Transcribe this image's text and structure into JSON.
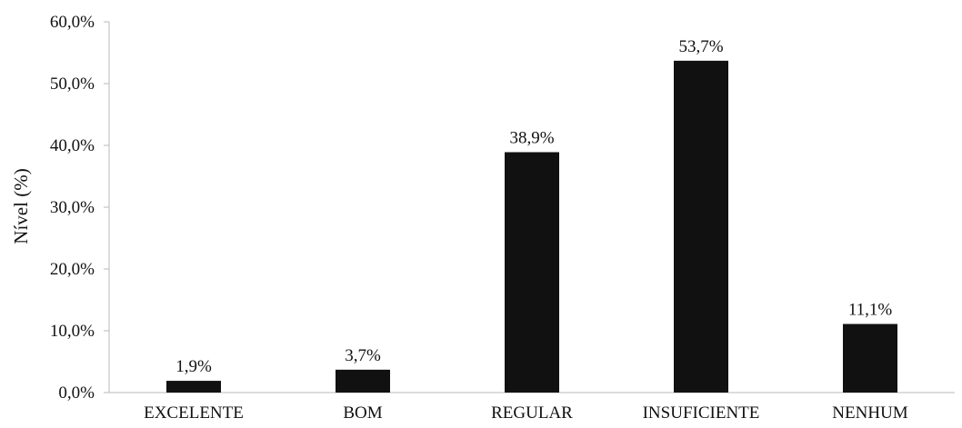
{
  "chart_data": {
    "type": "bar",
    "title": "",
    "xlabel": "",
    "ylabel": "Nível (%)",
    "categories": [
      "EXCELENTE",
      "BOM",
      "REGULAR",
      "INSUFICIENTE",
      "NENHUM"
    ],
    "values": [
      1.9,
      3.7,
      38.9,
      53.7,
      11.1
    ],
    "data_labels": [
      "1,9%",
      "3,7%",
      "38,9%",
      "53,7%",
      "11,1%"
    ],
    "ylim": [
      0,
      60
    ],
    "yticks": [
      0,
      10,
      20,
      30,
      40,
      50,
      60
    ],
    "ytick_labels": [
      "0,0%",
      "10,0%",
      "20,0%",
      "30,0%",
      "40,0%",
      "50,0%",
      "60,0%"
    ],
    "grid": false,
    "legend": "none",
    "bar_color": "#111111"
  }
}
